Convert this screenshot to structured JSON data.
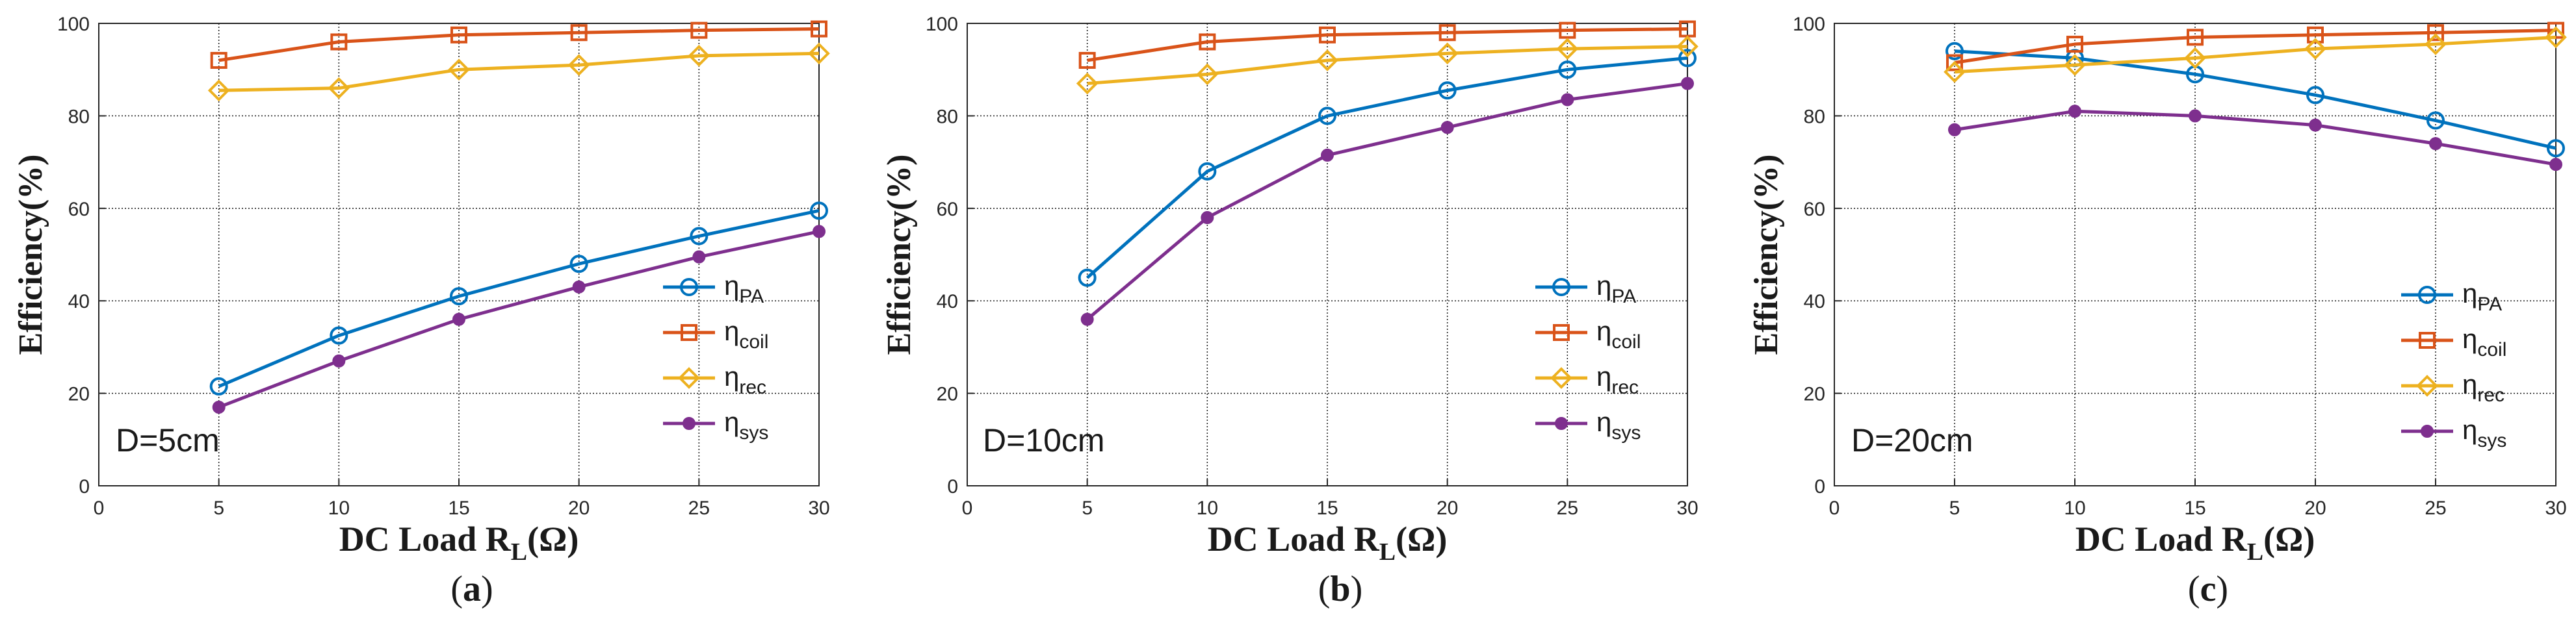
{
  "chart_data": [
    {
      "type": "line",
      "panel": "(a)",
      "panel_letter": "a",
      "annotation": "D=5cm",
      "ylabel": "Efficiency(%)",
      "xlabel": "DC Load R",
      "xlabel_sub": "L",
      "xlabel_unit": "(Ω)",
      "x": [
        5,
        10,
        15,
        20,
        25,
        30
      ],
      "xlim": [
        0,
        30
      ],
      "ylim": [
        0,
        100
      ],
      "xticks": [
        0,
        5,
        10,
        15,
        20,
        25,
        30
      ],
      "yticks": [
        0,
        20,
        40,
        60,
        80,
        100
      ],
      "grid": true,
      "legend_position": "right",
      "series": [
        {
          "name": "η",
          "sub": "PA",
          "key": "PA",
          "color": "#0072BD",
          "marker": "circle",
          "values": [
            21.5,
            32.5,
            41,
            48,
            54,
            59.5
          ]
        },
        {
          "name": "η",
          "sub": "coil",
          "key": "coil",
          "color": "#D95319",
          "marker": "square",
          "values": [
            92,
            96,
            97.5,
            98,
            98.5,
            98.8
          ]
        },
        {
          "name": "η",
          "sub": "rec",
          "key": "rec",
          "color": "#EDB120",
          "marker": "diamond",
          "values": [
            85.5,
            86,
            90,
            91,
            93,
            93.5
          ]
        },
        {
          "name": "η",
          "sub": "sys",
          "key": "sys",
          "color": "#7E2F8E",
          "marker": "star",
          "values": [
            17,
            27,
            36,
            43,
            49.5,
            55
          ]
        }
      ]
    },
    {
      "type": "line",
      "panel": "(b)",
      "panel_letter": "b",
      "annotation": "D=10cm",
      "ylabel": "Efficiency(%)",
      "xlabel": "DC Load R",
      "xlabel_sub": "L",
      "xlabel_unit": "(Ω)",
      "x": [
        5,
        10,
        15,
        20,
        25,
        30
      ],
      "xlim": [
        0,
        30
      ],
      "ylim": [
        0,
        100
      ],
      "xticks": [
        0,
        5,
        10,
        15,
        20,
        25,
        30
      ],
      "yticks": [
        0,
        20,
        40,
        60,
        80,
        100
      ],
      "grid": true,
      "legend_position": "right",
      "series": [
        {
          "name": "η",
          "sub": "PA",
          "key": "PA",
          "color": "#0072BD",
          "marker": "circle",
          "values": [
            45,
            68,
            80,
            85.5,
            90,
            92.5
          ]
        },
        {
          "name": "η",
          "sub": "coil",
          "key": "coil",
          "color": "#D95319",
          "marker": "square",
          "values": [
            92,
            96,
            97.5,
            98,
            98.5,
            98.8
          ]
        },
        {
          "name": "η",
          "sub": "rec",
          "key": "rec",
          "color": "#EDB120",
          "marker": "diamond",
          "values": [
            87,
            89,
            92,
            93.5,
            94.5,
            95
          ]
        },
        {
          "name": "η",
          "sub": "sys",
          "key": "sys",
          "color": "#7E2F8E",
          "marker": "star",
          "values": [
            36,
            58,
            71.5,
            77.5,
            83.5,
            87
          ]
        }
      ]
    },
    {
      "type": "line",
      "panel": "(c)",
      "panel_letter": "c",
      "annotation": "D=20cm",
      "ylabel": "Efficiency(%)",
      "xlabel": "DC Load R",
      "xlabel_sub": "L",
      "xlabel_unit": "(Ω)",
      "x": [
        5,
        10,
        15,
        20,
        25,
        30
      ],
      "xlim": [
        0,
        30
      ],
      "ylim": [
        0,
        100
      ],
      "xticks": [
        0,
        5,
        10,
        15,
        20,
        25,
        30
      ],
      "yticks": [
        0,
        20,
        40,
        60,
        80,
        100
      ],
      "grid": true,
      "legend_position": "right",
      "series": [
        {
          "name": "η",
          "sub": "PA",
          "key": "PA",
          "color": "#0072BD",
          "marker": "circle",
          "values": [
            94,
            92.5,
            89,
            84.5,
            79,
            73
          ]
        },
        {
          "name": "η",
          "sub": "coil",
          "key": "coil",
          "color": "#D95319",
          "marker": "square",
          "values": [
            91.5,
            95.5,
            97,
            97.5,
            98,
            98.5
          ]
        },
        {
          "name": "η",
          "sub": "rec",
          "key": "rec",
          "color": "#EDB120",
          "marker": "diamond",
          "values": [
            89.5,
            91,
            92.5,
            94.5,
            95.5,
            97
          ]
        },
        {
          "name": "η",
          "sub": "sys",
          "key": "sys",
          "color": "#7E2F8E",
          "marker": "star",
          "values": [
            77,
            81,
            80,
            78,
            74,
            69.5
          ]
        }
      ]
    }
  ]
}
